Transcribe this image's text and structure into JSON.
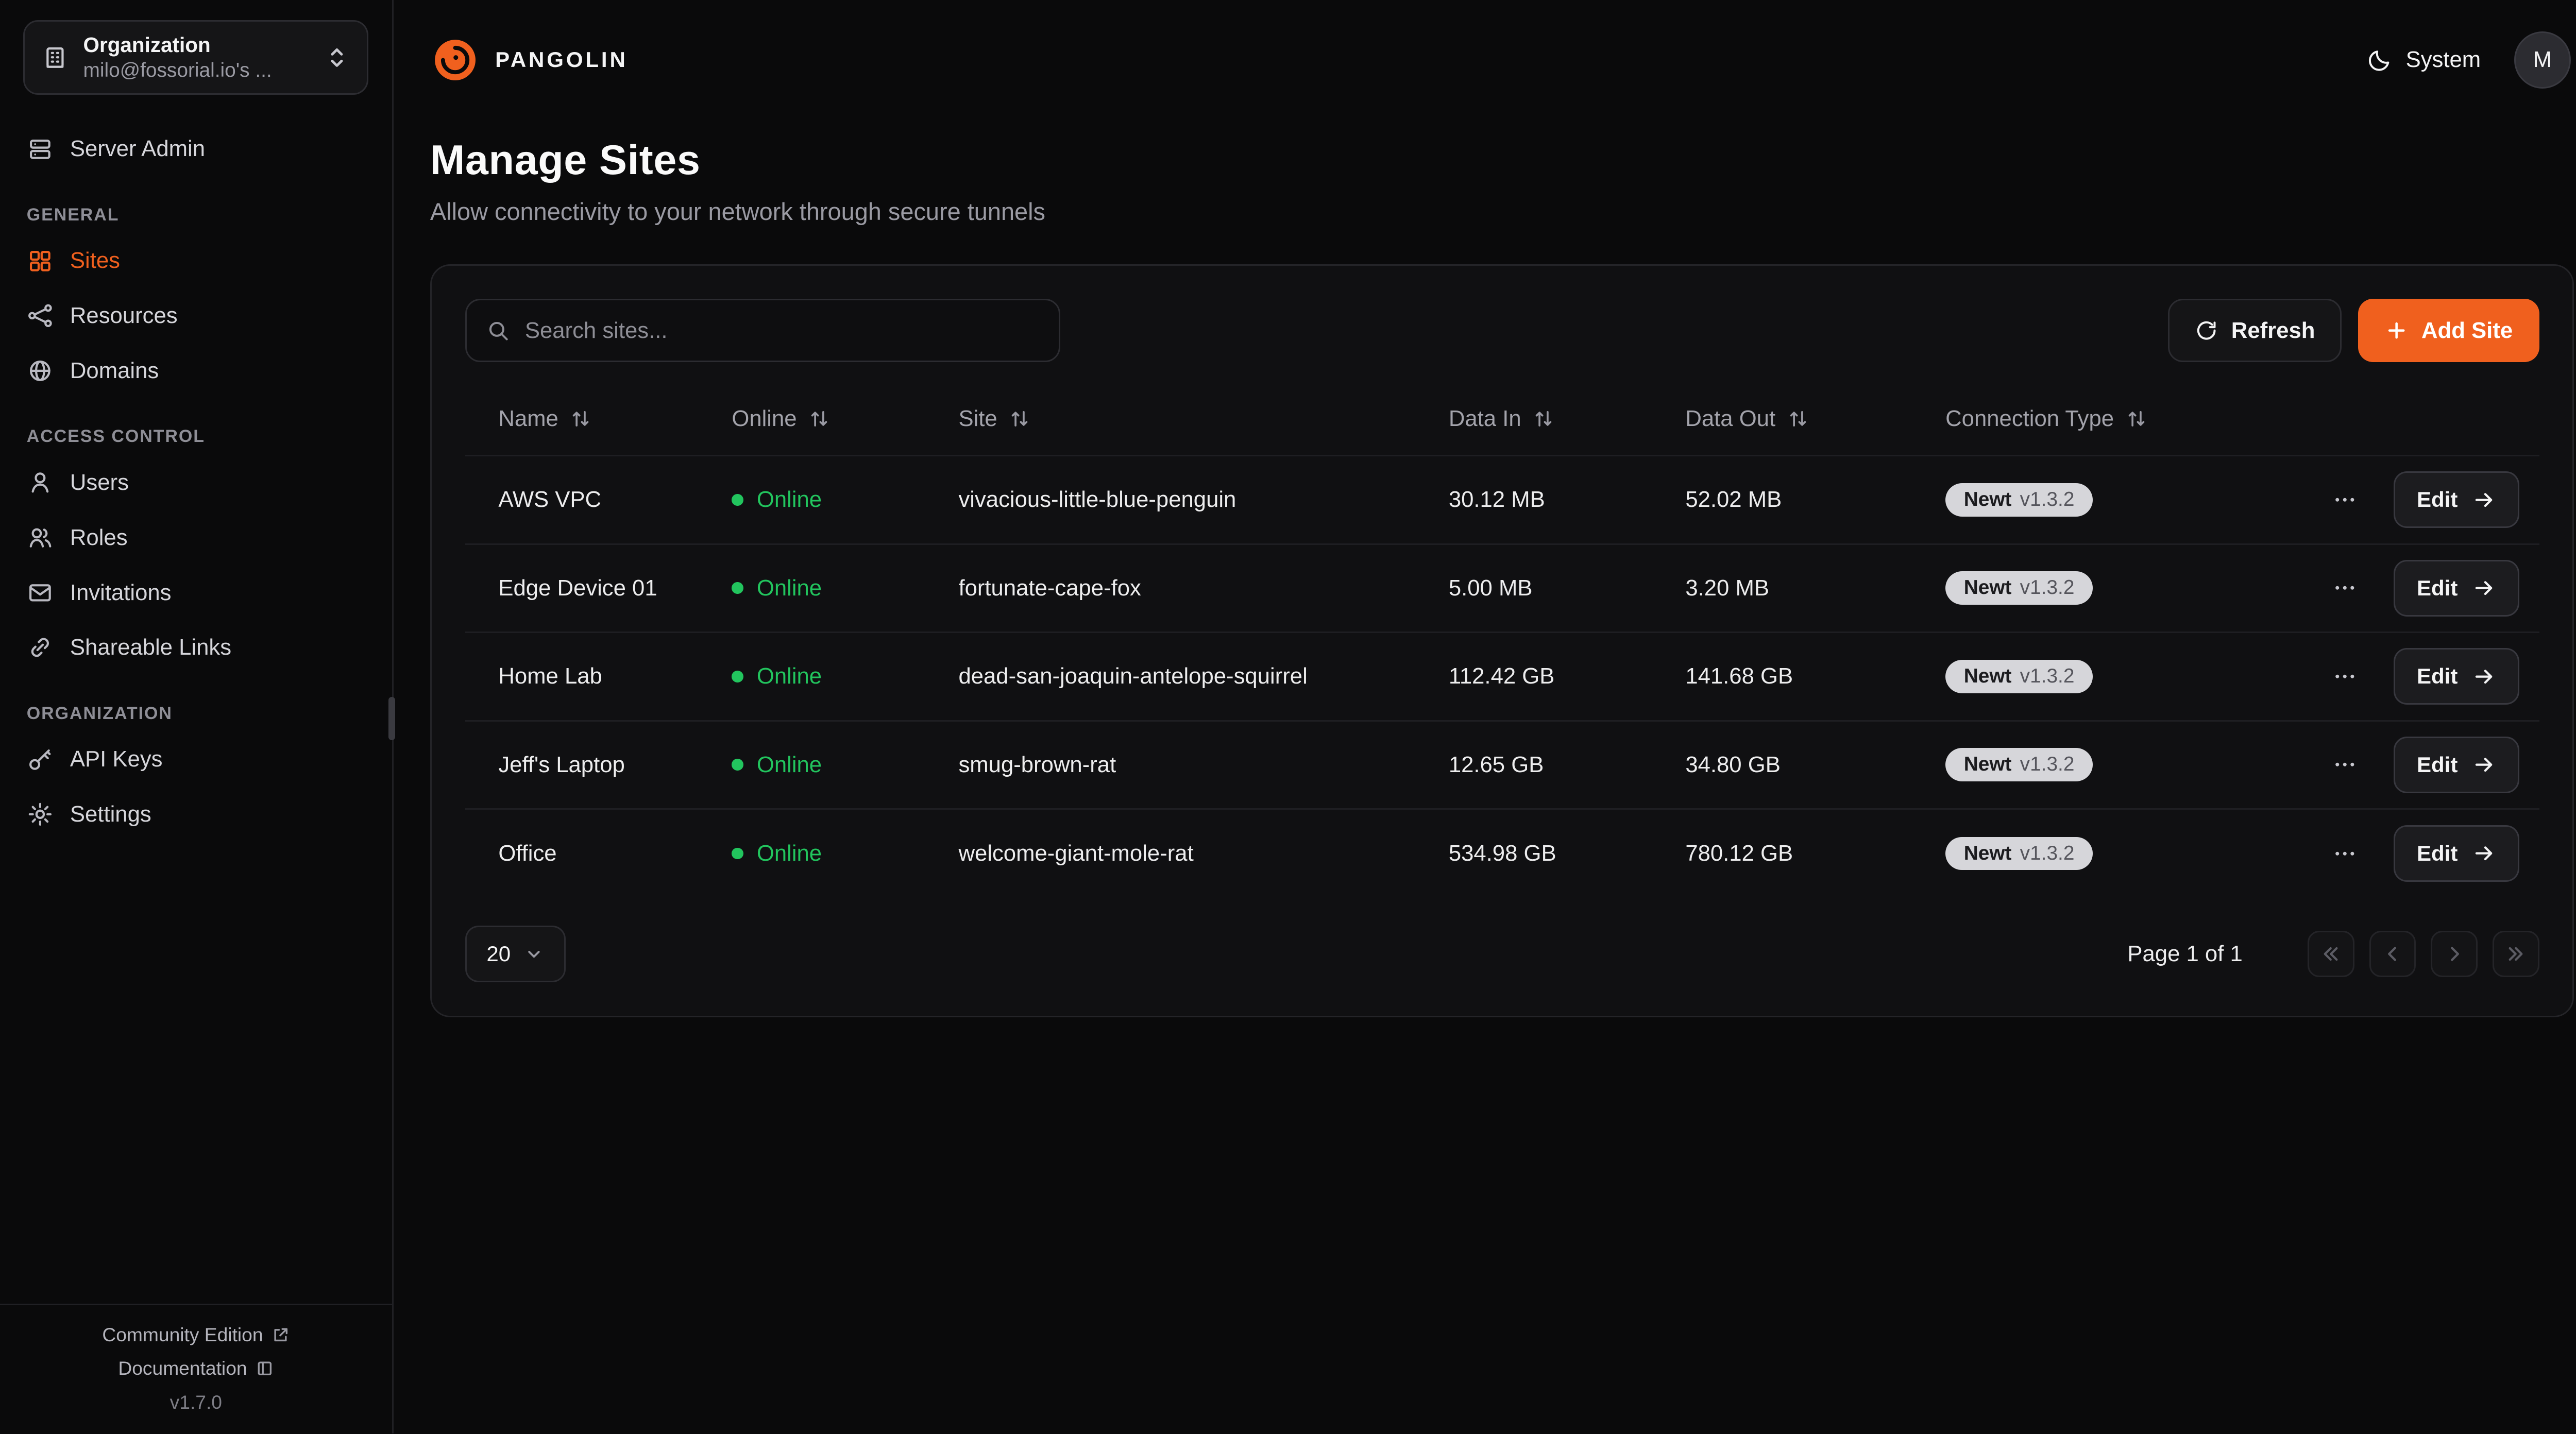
{
  "colors": {
    "accent": "#f0601e",
    "online_green": "#22c55e",
    "badge_bg": "#d6d6da"
  },
  "icons": {
    "pangolin-logo": "orange-spiral-dragon",
    "building": "organization",
    "chevrons-up-down": "picker-toggle",
    "server": "server-admin",
    "grid": "sites",
    "waypoints": "resources",
    "globe": "domains",
    "user": "users",
    "users": "roles",
    "mail": "invitations",
    "link": "shareable-links",
    "key": "api-keys",
    "gear": "settings",
    "external-link": "community-edition",
    "book": "documentation",
    "moon": "theme-system",
    "search": "magnifier",
    "refresh": "refresh",
    "plus": "add",
    "arrow-up-down": "sort",
    "ellipsis": "row-menu",
    "arrow-right": "edit-go",
    "chevron-down": "select-open"
  },
  "sidebar": {
    "org": {
      "title": "Organization",
      "subtitle": "milo@fossorial.io's ..."
    },
    "server_admin": "Server Admin",
    "sections": [
      {
        "label": "GENERAL",
        "items": [
          "Sites",
          "Resources",
          "Domains"
        ]
      },
      {
        "label": "ACCESS CONTROL",
        "items": [
          "Users",
          "Roles",
          "Invitations",
          "Shareable Links"
        ]
      },
      {
        "label": "ORGANIZATION",
        "items": [
          "API Keys",
          "Settings"
        ]
      }
    ],
    "footer": {
      "community": "Community Edition",
      "documentation": "Documentation",
      "version": "v1.7.0"
    }
  },
  "header": {
    "brand": "PANGOLIN",
    "theme": "System",
    "avatar": "M"
  },
  "page": {
    "title": "Manage Sites",
    "subtitle": "Allow connectivity to your network through secure tunnels"
  },
  "toolbar": {
    "search_placeholder": "Search sites...",
    "refresh": "Refresh",
    "add_site": "Add Site"
  },
  "table": {
    "columns": [
      "Name",
      "Online",
      "Site",
      "Data In",
      "Data Out",
      "Connection Type"
    ],
    "edit_label": "Edit",
    "rows": [
      {
        "name": "AWS VPC",
        "online": "Online",
        "site": "vivacious-little-blue-penguin",
        "data_in": "30.12 MB",
        "data_out": "52.02 MB",
        "conn_name": "Newt",
        "conn_version": "v1.3.2"
      },
      {
        "name": "Edge Device 01",
        "online": "Online",
        "site": "fortunate-cape-fox",
        "data_in": "5.00 MB",
        "data_out": "3.20 MB",
        "conn_name": "Newt",
        "conn_version": "v1.3.2"
      },
      {
        "name": "Home Lab",
        "online": "Online",
        "site": "dead-san-joaquin-antelope-squirrel",
        "data_in": "112.42 GB",
        "data_out": "141.68 GB",
        "conn_name": "Newt",
        "conn_version": "v1.3.2"
      },
      {
        "name": "Jeff's Laptop",
        "online": "Online",
        "site": "smug-brown-rat",
        "data_in": "12.65 GB",
        "data_out": "34.80 GB",
        "conn_name": "Newt",
        "conn_version": "v1.3.2"
      },
      {
        "name": "Office",
        "online": "Online",
        "site": "welcome-giant-mole-rat",
        "data_in": "534.98 GB",
        "data_out": "780.12 GB",
        "conn_name": "Newt",
        "conn_version": "v1.3.2"
      }
    ]
  },
  "pagination": {
    "page_size": "20",
    "info": "Page 1 of 1"
  }
}
